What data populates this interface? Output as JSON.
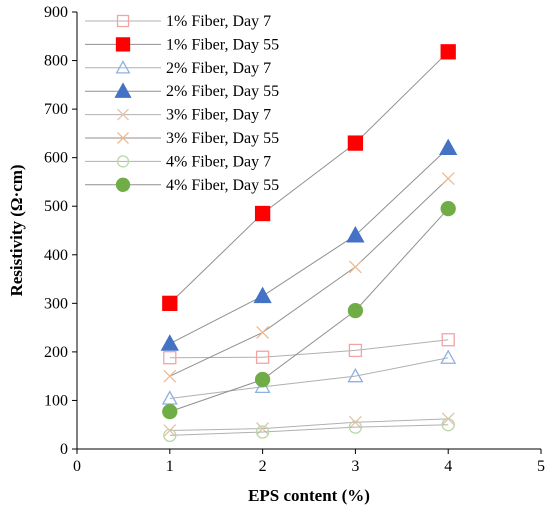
{
  "chart_data": {
    "type": "scatter",
    "xlabel": "EPS content (%)",
    "ylabel": "Resistivity (Ω·cm)",
    "xlim": [
      0,
      5
    ],
    "ylim": [
      0,
      900
    ],
    "xticks": [
      0,
      1,
      2,
      3,
      4,
      5
    ],
    "yticks": [
      0,
      100,
      200,
      300,
      400,
      500,
      600,
      700,
      800,
      900
    ],
    "grid": false,
    "legend_position": "top-left",
    "series": [
      {
        "name": "1% Fiber, Day 7",
        "marker": "square",
        "filled": false,
        "color": "#f4a3a3",
        "line_color": "#b0b0b0",
        "x": [
          1,
          2,
          3,
          4
        ],
        "values": [
          188,
          189,
          203,
          225
        ]
      },
      {
        "name": "1% Fiber, Day 55",
        "marker": "square",
        "filled": true,
        "color": "#ff0000",
        "line_color": "#909090",
        "x": [
          1,
          2,
          3,
          4
        ],
        "values": [
          300,
          485,
          630,
          818
        ]
      },
      {
        "name": "2% Fiber, Day 7",
        "marker": "triangle",
        "filled": false,
        "color": "#8fb0e0",
        "line_color": "#b0b0b0",
        "x": [
          1,
          2,
          3,
          4
        ],
        "values": [
          104,
          128,
          150,
          188
        ]
      },
      {
        "name": "2% Fiber, Day 55",
        "marker": "triangle",
        "filled": true,
        "color": "#4472c4",
        "line_color": "#909090",
        "x": [
          1,
          2,
          3,
          4
        ],
        "values": [
          217,
          315,
          440,
          620
        ]
      },
      {
        "name": "3% Fiber, Day 7",
        "marker": "cross",
        "filled": false,
        "color": "#e8c2a8",
        "line_color": "#b0b0b0",
        "x": [
          1,
          2,
          3,
          4
        ],
        "values": [
          38,
          42,
          55,
          62
        ]
      },
      {
        "name": "3% Fiber, Day 55",
        "marker": "cross",
        "filled": false,
        "color": "#f0b890",
        "line_color": "#909090",
        "x": [
          1,
          2,
          3,
          4
        ],
        "values": [
          150,
          240,
          375,
          557
        ]
      },
      {
        "name": "4% Fiber, Day 7",
        "marker": "circle",
        "filled": false,
        "color": "#b8d8a8",
        "line_color": "#b0b0b0",
        "x": [
          1,
          2,
          3,
          4
        ],
        "values": [
          28,
          35,
          45,
          50
        ]
      },
      {
        "name": "4% Fiber, Day 55",
        "marker": "circle",
        "filled": true,
        "color": "#70ad47",
        "line_color": "#909090",
        "x": [
          1,
          2,
          3,
          4
        ],
        "values": [
          77,
          143,
          285,
          495
        ]
      }
    ]
  }
}
